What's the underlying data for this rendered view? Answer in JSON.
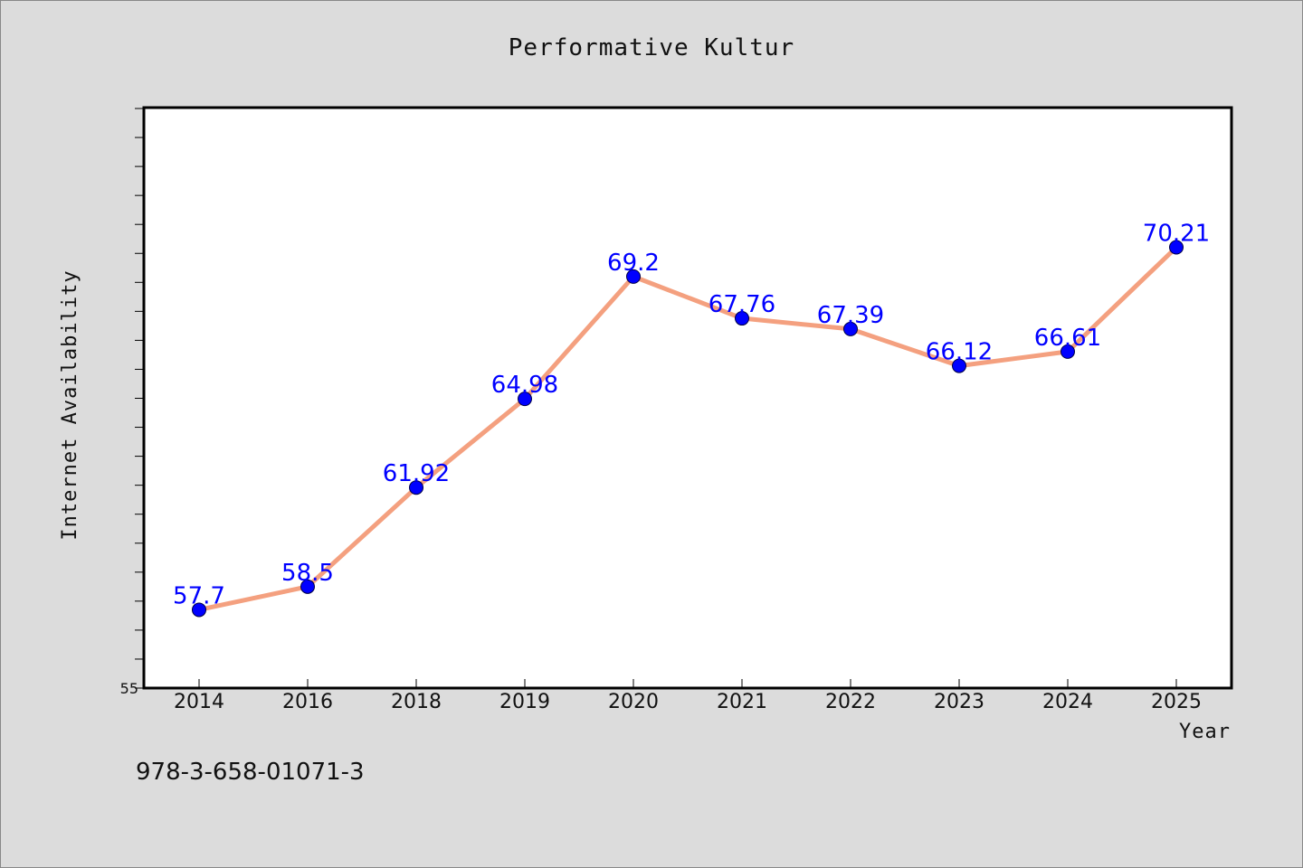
{
  "chart_data": {
    "type": "line",
    "title": "Performative Kultur",
    "xlabel": "Year",
    "ylabel": "Internet Availability",
    "categories": [
      "2014",
      "2016",
      "2018",
      "2019",
      "2020",
      "2021",
      "2022",
      "2023",
      "2024",
      "2025"
    ],
    "series": [
      {
        "values": [
          57.7,
          58.5,
          61.92,
          64.98,
          69.2,
          67.76,
          67.39,
          66.12,
          66.61,
          70.21
        ],
        "line_color": "#f4a07f",
        "marker_color": "#0000ff"
      }
    ],
    "data_labels": [
      "57.7",
      "58.5",
      "61.92",
      "64.98",
      "69.2",
      "67.76",
      "67.39",
      "66.12",
      "66.61",
      "70.21"
    ],
    "ylim": [
      55,
      75
    ],
    "y_tick_labels": [
      "55"
    ],
    "grid": false,
    "legend": "none"
  },
  "footer": {
    "isbn": "978-3-658-01071-3"
  }
}
